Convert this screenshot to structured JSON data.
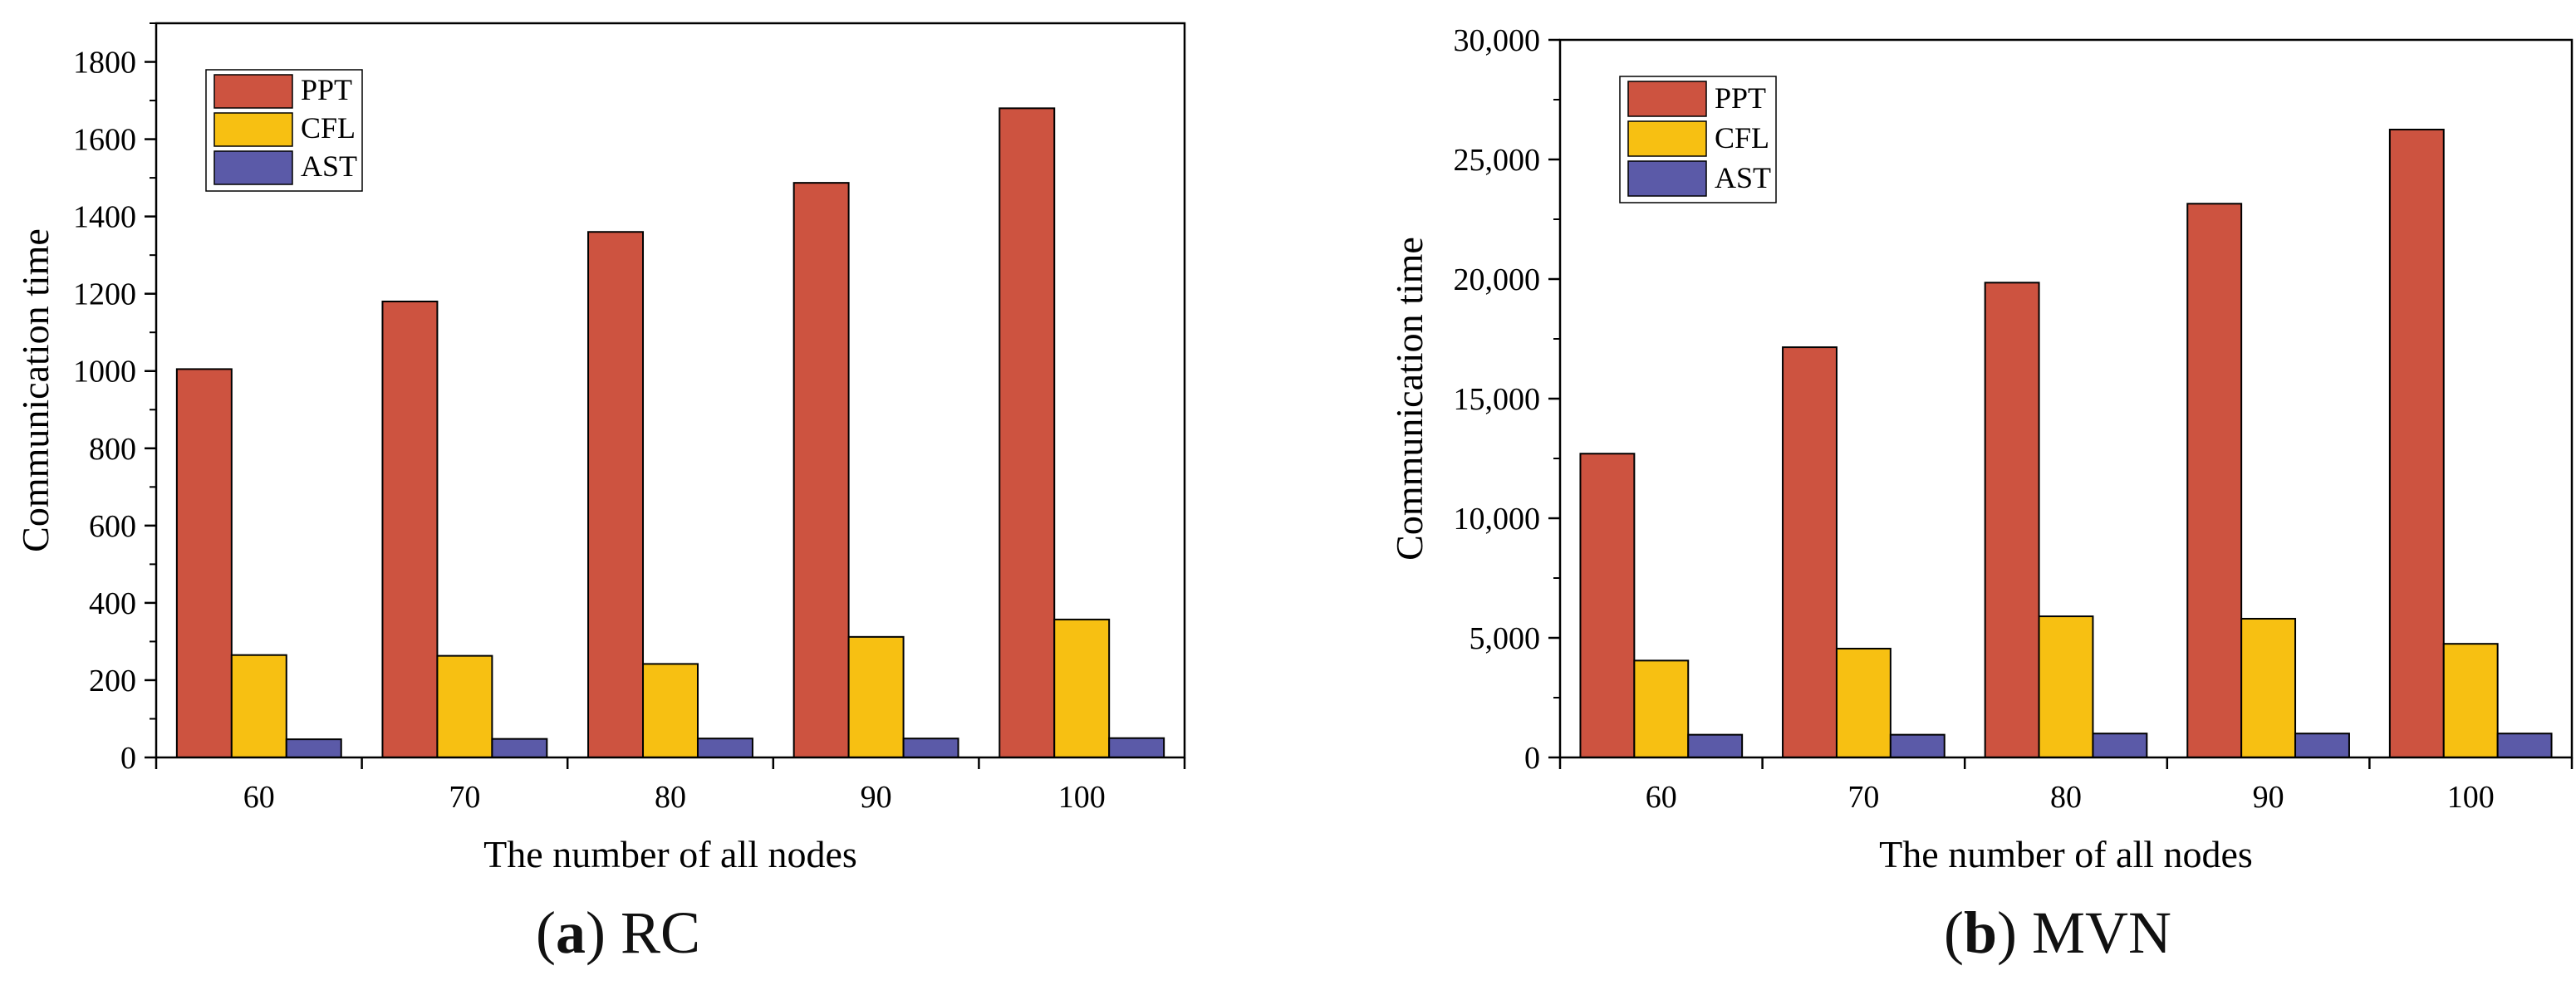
{
  "chart_data": [
    {
      "type": "bar",
      "categories": [
        "60",
        "70",
        "80",
        "90",
        "100"
      ],
      "series": [
        {
          "name": "PPT",
          "values": [
            1005,
            1180,
            1360,
            1487,
            1680
          ]
        },
        {
          "name": "CFL",
          "values": [
            265,
            263,
            242,
            312,
            357
          ]
        },
        {
          "name": "AST",
          "values": [
            47,
            48,
            49,
            49,
            50
          ]
        }
      ],
      "xlabel": "The number of all nodes",
      "ylabel": "Communication time",
      "ylim": [
        0,
        1900
      ],
      "yticks": [
        0,
        200,
        400,
        600,
        800,
        1000,
        1200,
        1400,
        1600,
        1800
      ],
      "ytick_labels": [
        "0",
        "200",
        "400",
        "600",
        "800",
        "1000",
        "1200",
        "1400",
        "1600",
        "1800"
      ],
      "legend": "top-left",
      "caption": {
        "letter": "a",
        "text": "RC"
      }
    },
    {
      "type": "bar",
      "categories": [
        "60",
        "70",
        "80",
        "90",
        "100"
      ],
      "series": [
        {
          "name": "PPT",
          "values": [
            12700,
            17150,
            19850,
            23150,
            26250
          ]
        },
        {
          "name": "CFL",
          "values": [
            4050,
            4550,
            5900,
            5800,
            4750
          ]
        },
        {
          "name": "AST",
          "values": [
            950,
            950,
            1000,
            1000,
            1000
          ]
        }
      ],
      "xlabel": "The number of all nodes",
      "ylabel": "Communication time",
      "ylim": [
        0,
        30000
      ],
      "yticks": [
        0,
        5000,
        10000,
        15000,
        20000,
        25000,
        30000
      ],
      "ytick_labels": [
        "0",
        "5,000",
        "10,000",
        "15,000",
        "20,000",
        "25,000",
        "30,000"
      ],
      "legend": "top-left",
      "caption": {
        "letter": "b",
        "text": "MVN"
      }
    }
  ],
  "colors": {
    "PPT": "#CD5340",
    "CFL": "#F7C012",
    "AST": "#5B5AA8"
  }
}
